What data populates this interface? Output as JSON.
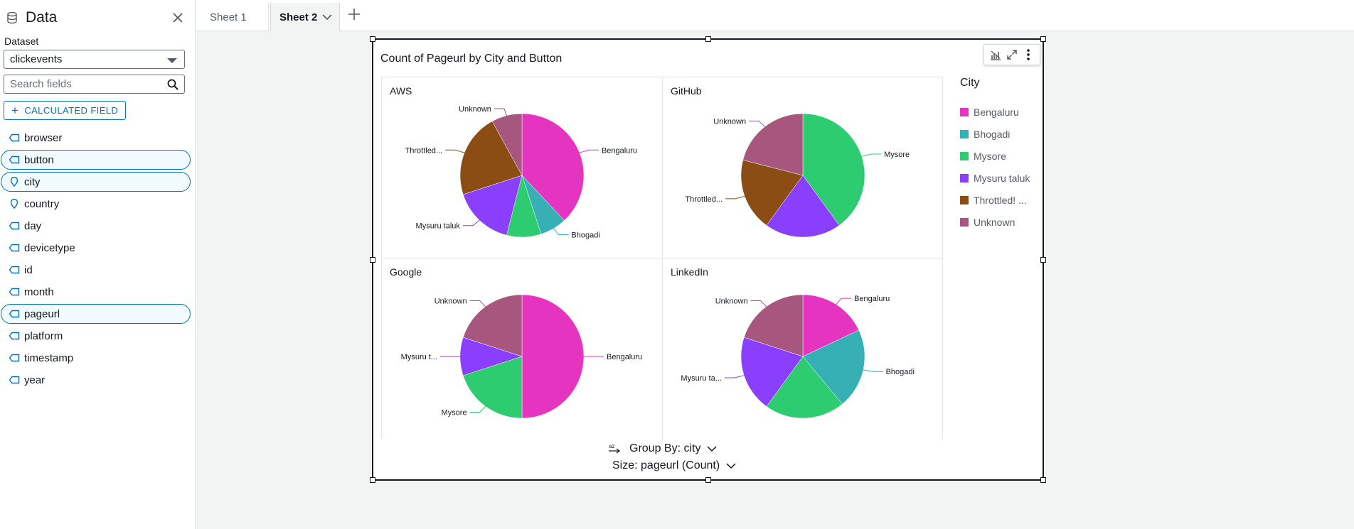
{
  "sidebar": {
    "title": "Data",
    "dataset_label": "Dataset",
    "dataset_value": "clickevents",
    "search_placeholder": "Search fields",
    "calc_button": "CALCULATED FIELD",
    "fields": [
      {
        "name": "browser",
        "icon": "dimension-tag-icon",
        "selected": false
      },
      {
        "name": "button",
        "icon": "dimension-tag-icon",
        "selected": true
      },
      {
        "name": "city",
        "icon": "geo-pin-icon",
        "selected": true
      },
      {
        "name": "country",
        "icon": "geo-pin-icon",
        "selected": false
      },
      {
        "name": "day",
        "icon": "dimension-tag-icon",
        "selected": false
      },
      {
        "name": "devicetype",
        "icon": "dimension-tag-icon",
        "selected": false
      },
      {
        "name": "id",
        "icon": "dimension-tag-icon",
        "selected": false
      },
      {
        "name": "month",
        "icon": "dimension-tag-icon",
        "selected": false
      },
      {
        "name": "pageurl",
        "icon": "dimension-tag-icon",
        "selected": true
      },
      {
        "name": "platform",
        "icon": "dimension-tag-icon",
        "selected": false
      },
      {
        "name": "timestamp",
        "icon": "dimension-tag-icon",
        "selected": false
      },
      {
        "name": "year",
        "icon": "dimension-tag-icon",
        "selected": false
      }
    ]
  },
  "tabs": [
    {
      "label": "Sheet 1",
      "active": false
    },
    {
      "label": "Sheet 2",
      "active": true
    }
  ],
  "visual": {
    "title": "Count of Pageurl by City and Button",
    "field_wells": {
      "group_by": "Group By: city",
      "size": "Size: pageurl (Count)"
    }
  },
  "colors": {
    "Bengaluru": "#e535c0",
    "Bhogadi": "#36b0b5",
    "Mysore": "#2ecc71",
    "Mysuru taluk": "#8a3ffc",
    "Throttled! ...": "#8b4d13",
    "Unknown": "#a7567d",
    "accent": "#0073bb"
  },
  "chart_data": {
    "type": "pie",
    "title": "Count of Pageurl by City and Button",
    "legend_title": "City",
    "legend_position": "right",
    "legend": [
      "Bengaluru",
      "Bhogadi",
      "Mysore",
      "Mysuru taluk",
      "Throttled! ...",
      "Unknown"
    ],
    "small_multiples": [
      {
        "panel": "AWS",
        "slices": [
          {
            "city": "Bengaluru",
            "label": "Bengaluru",
            "value": 38
          },
          {
            "city": "Bhogadi",
            "label": "Bhogadi",
            "value": 7
          },
          {
            "city": "Mysore",
            "label": "",
            "value": 9
          },
          {
            "city": "Mysuru taluk",
            "label": "Mysuru taluk",
            "value": 16
          },
          {
            "city": "Throttled! ...",
            "label": "Throttled...",
            "value": 22
          },
          {
            "city": "Unknown",
            "label": "Unknown",
            "value": 8
          }
        ]
      },
      {
        "panel": "GitHub",
        "slices": [
          {
            "city": "Mysore",
            "label": "Mysore",
            "value": 40
          },
          {
            "city": "Mysuru taluk",
            "label": "",
            "value": 20
          },
          {
            "city": "Throttled! ...",
            "label": "Throttled...",
            "value": 19
          },
          {
            "city": "Unknown",
            "label": "Unknown",
            "value": 21
          }
        ]
      },
      {
        "panel": "Google",
        "slices": [
          {
            "city": "Bengaluru",
            "label": "Bengaluru",
            "value": 50
          },
          {
            "city": "Mysore",
            "label": "Mysore",
            "value": 20
          },
          {
            "city": "Mysuru taluk",
            "label": "Mysuru t...",
            "value": 10
          },
          {
            "city": "Unknown",
            "label": "Unknown",
            "value": 20
          }
        ]
      },
      {
        "panel": "LinkedIn",
        "slices": [
          {
            "city": "Bengaluru",
            "label": "Bengaluru",
            "value": 18
          },
          {
            "city": "Bhogadi",
            "label": "Bhogadi",
            "value": 21
          },
          {
            "city": "Mysore",
            "label": "",
            "value": 21
          },
          {
            "city": "Mysuru taluk",
            "label": "Mysuru ta...",
            "value": 20
          },
          {
            "city": "Unknown",
            "label": "Unknown",
            "value": 20
          }
        ]
      }
    ]
  }
}
